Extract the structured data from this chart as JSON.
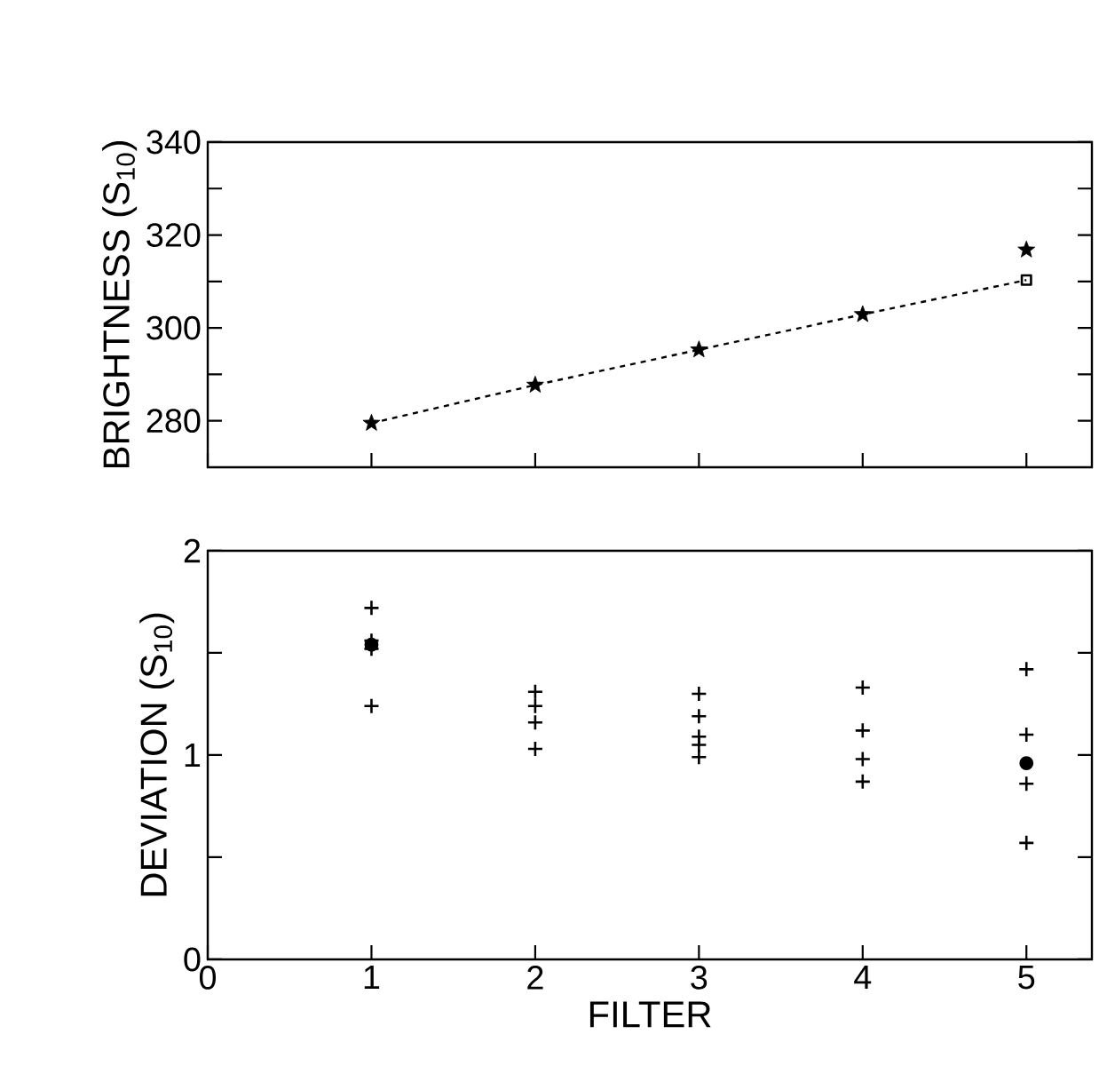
{
  "chart_data": [
    {
      "type": "scatter",
      "ylabel": "BRIGHTNESS (S$_{10}$)",
      "xlim": [
        0,
        5.4
      ],
      "xticks": [
        0,
        1,
        2,
        3,
        4,
        5
      ],
      "ylim": [
        270,
        340
      ],
      "yticks": [
        280,
        {
          "value": 290,
          "label": null
        },
        300,
        {
          "value": 310,
          "label": null
        },
        320,
        {
          "value": 330,
          "label": null
        },
        340
      ],
      "tick_labels": "y",
      "grid": false,
      "series": [
        {
          "type": "line",
          "line_style": "dashed",
          "marker": "none",
          "color": "#000000",
          "x": [
            1,
            2,
            3,
            4,
            5
          ],
          "values": [
            279.5,
            287.7,
            295.3,
            302.9,
            310.3
          ]
        },
        {
          "marker": "star",
          "color": "#000000",
          "x": [
            1,
            2,
            3,
            4,
            5
          ],
          "values": [
            279.5,
            287.7,
            295.3,
            302.9,
            316.8
          ]
        },
        {
          "type": "scatter",
          "marker": "square",
          "color": "#000000",
          "x": [
            5
          ],
          "values": [
            310.3
          ]
        }
      ]
    },
    {
      "type": "scatter",
      "xlabel": "FILTER",
      "ylabel": "DEVIATION (S$_{10}$)",
      "xlim": [
        0,
        5.4
      ],
      "xticks": [
        0,
        1,
        2,
        3,
        4,
        5
      ],
      "ylim": [
        0,
        2
      ],
      "yticks": [
        0,
        {
          "value": 0.5,
          "label": null
        },
        1,
        {
          "value": 1.5,
          "label": null
        },
        2
      ],
      "grid": false,
      "series": [
        {
          "marker": "cross",
          "color": "#000000",
          "x": [
            1,
            1,
            1,
            1,
            2,
            2,
            2,
            2,
            3,
            3,
            3,
            3,
            3,
            4,
            4,
            4,
            4,
            5,
            5,
            5,
            5
          ],
          "values": [
            1.72,
            1.56,
            1.52,
            1.24,
            1.31,
            1.24,
            1.16,
            1.03,
            1.3,
            1.19,
            1.09,
            1.05,
            0.99,
            1.33,
            1.12,
            0.98,
            0.87,
            1.42,
            1.1,
            0.86,
            0.57
          ]
        },
        {
          "type": "scatter",
          "marker": "circle",
          "color": "#000000",
          "x": [
            1,
            5
          ],
          "values": [
            1.54,
            0.96
          ]
        }
      ]
    }
  ]
}
